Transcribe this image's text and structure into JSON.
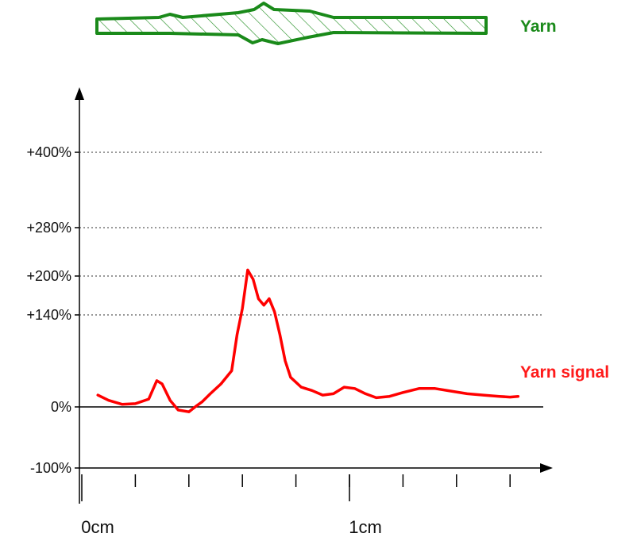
{
  "chart_data": {
    "type": "line",
    "title": "",
    "xlabel": "",
    "ylabel": "",
    "x_ticks": [
      "0cm",
      "1cm"
    ],
    "x_range": [
      0,
      1.7
    ],
    "x_minor_ticks": [
      0.2,
      0.4,
      0.6,
      0.8,
      1.0,
      1.2,
      1.4,
      1.6
    ],
    "y_range": [
      -100,
      500
    ],
    "y_ticks": [
      {
        "value": 400,
        "label": "+400%"
      },
      {
        "value": 280,
        "label": "+280%"
      },
      {
        "value": 200,
        "label": "+200%"
      },
      {
        "value": 140,
        "label": "+140%"
      },
      {
        "value": 0,
        "label": "0%"
      },
      {
        "value": -100,
        "label": "-100%"
      }
    ],
    "gridlines_dotted": [
      400,
      280,
      200,
      140
    ],
    "baseline": 0,
    "series": [
      {
        "name": "Yarn signal",
        "color": "#ff0000",
        "x": [
          0.06,
          0.1,
          0.15,
          0.2,
          0.25,
          0.28,
          0.3,
          0.33,
          0.36,
          0.4,
          0.43,
          0.45,
          0.48,
          0.52,
          0.56,
          0.58,
          0.6,
          0.62,
          0.64,
          0.66,
          0.68,
          0.7,
          0.72,
          0.74,
          0.76,
          0.78,
          0.82,
          0.86,
          0.9,
          0.94,
          0.98,
          1.02,
          1.06,
          1.1,
          1.15,
          1.2,
          1.26,
          1.32,
          1.38,
          1.44,
          1.5,
          1.56,
          1.6,
          1.63
        ],
        "y": [
          18,
          10,
          4,
          5,
          12,
          40,
          35,
          10,
          -5,
          -8,
          2,
          8,
          20,
          35,
          55,
          110,
          150,
          210,
          195,
          165,
          155,
          165,
          145,
          110,
          70,
          45,
          30,
          25,
          18,
          20,
          30,
          28,
          20,
          14,
          16,
          22,
          28,
          28,
          24,
          20,
          18,
          16,
          15,
          16
        ]
      }
    ],
    "legend": "right, next to line"
  },
  "yarn_diagram": {
    "label": "Yarn",
    "color": "#1a8a1a",
    "icon": "yarn-cross-section-illustration"
  },
  "series_label_color": "#ff1a1a"
}
